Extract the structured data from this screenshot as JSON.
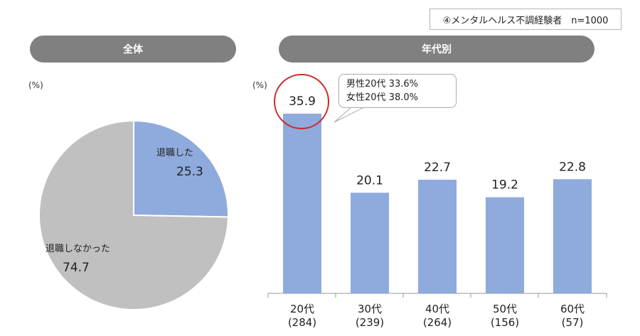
{
  "header": {
    "tag_label": "④メンタルヘルス不調経験者　n=1000"
  },
  "sections": {
    "overall": "全体",
    "by_age": "年代別"
  },
  "pie_panel": {
    "unit": "(%)"
  },
  "bar_panel": {
    "unit": "(%)",
    "callout_lines": [
      "男性20代  33.6%",
      "女性20代  38.0%"
    ],
    "highlight_color": "#cc2a2a"
  },
  "colors": {
    "bar": "#8faadc",
    "pie_quit": "#8faadc",
    "pie_stay": "#c0c0c0",
    "pill": "#808080"
  },
  "chart_data": [
    {
      "type": "pie",
      "title": "全体",
      "unit": "%",
      "slices": [
        {
          "label": "退職した",
          "value": 25.3
        },
        {
          "label": "退職しなかった",
          "value": 74.7
        }
      ]
    },
    {
      "type": "bar",
      "title": "年代別",
      "unit": "%",
      "categories": [
        "20代",
        "30代",
        "40代",
        "50代",
        "60代"
      ],
      "sample_sizes": [
        "(284)",
        "(239)",
        "(264)",
        "(156)",
        "(57)"
      ],
      "values": [
        35.9,
        20.1,
        22.7,
        19.2,
        22.8
      ]
    }
  ]
}
